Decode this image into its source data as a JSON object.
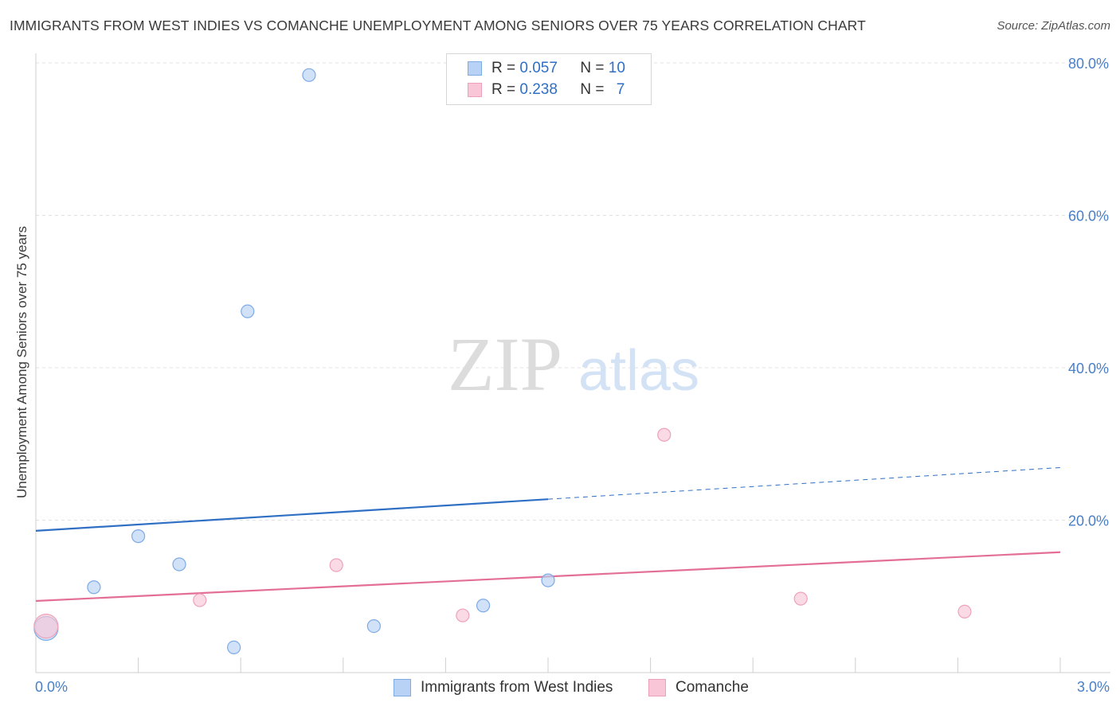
{
  "title": "IMMIGRANTS FROM WEST INDIES VS COMANCHE UNEMPLOYMENT AMONG SENIORS OVER 75 YEARS CORRELATION CHART",
  "source": "Source: ZipAtlas.com",
  "watermark": {
    "zip": "ZIP",
    "atlas": "atlas"
  },
  "legend": {
    "r_label": "R =",
    "n_label": "N =",
    "series": [
      {
        "name": "Immigrants from West Indies",
        "r": "0.057",
        "n": "10"
      },
      {
        "name": "Comanche",
        "r": "0.238",
        "n": "7"
      }
    ]
  },
  "colors": {
    "blue_fill": "#b8d2f5",
    "blue_stroke": "#7eaae6",
    "blue_line": "#2f6fc4",
    "pink_fill": "#f8c6d6",
    "pink_stroke": "#eea2b9",
    "pink_line": "#e36f97",
    "grid": "#e0e0e0",
    "tick_text": "#4a7fc8"
  },
  "chart_data": {
    "type": "scatter",
    "title": "IMMIGRANTS FROM WEST INDIES VS COMANCHE UNEMPLOYMENT AMONG SENIORS OVER 75 YEARS CORRELATION CHART",
    "xlabel": "",
    "ylabel": "Unemployment Among Seniors over 75 years",
    "xlim": [
      0,
      3.0
    ],
    "ylim": [
      0,
      80
    ],
    "y_ticks": [
      20,
      40,
      60,
      80
    ],
    "y_tick_labels": [
      "20.0%",
      "40.0%",
      "60.0%",
      "80.0%"
    ],
    "x_tick_labels": {
      "min": "0.0%",
      "max": "3.0%"
    },
    "series": [
      {
        "name": "Immigrants from West Indies",
        "color": "blue",
        "points": [
          {
            "x": 0.03,
            "y": 5.8,
            "size": "large"
          },
          {
            "x": 0.17,
            "y": 11.2
          },
          {
            "x": 0.3,
            "y": 17.9
          },
          {
            "x": 0.42,
            "y": 14.2
          },
          {
            "x": 0.58,
            "y": 3.3
          },
          {
            "x": 0.62,
            "y": 47.4
          },
          {
            "x": 0.8,
            "y": 78.4
          },
          {
            "x": 0.99,
            "y": 6.1
          },
          {
            "x": 1.31,
            "y": 8.8
          },
          {
            "x": 1.5,
            "y": 12.1
          }
        ],
        "trend": {
          "x0": 0,
          "y0": 18.6,
          "x_solid_end": 1.5,
          "x1": 3.0,
          "y1": 26.9
        }
      },
      {
        "name": "Comanche",
        "color": "pink",
        "points": [
          {
            "x": 0.03,
            "y": 6.1,
            "size": "large"
          },
          {
            "x": 0.48,
            "y": 9.5
          },
          {
            "x": 0.88,
            "y": 14.1
          },
          {
            "x": 1.25,
            "y": 7.5
          },
          {
            "x": 1.84,
            "y": 31.2
          },
          {
            "x": 2.24,
            "y": 9.7
          },
          {
            "x": 2.72,
            "y": 8.0
          }
        ],
        "trend": {
          "x0": 0,
          "y0": 9.4,
          "x1": 3.0,
          "y1": 15.8
        }
      }
    ]
  }
}
